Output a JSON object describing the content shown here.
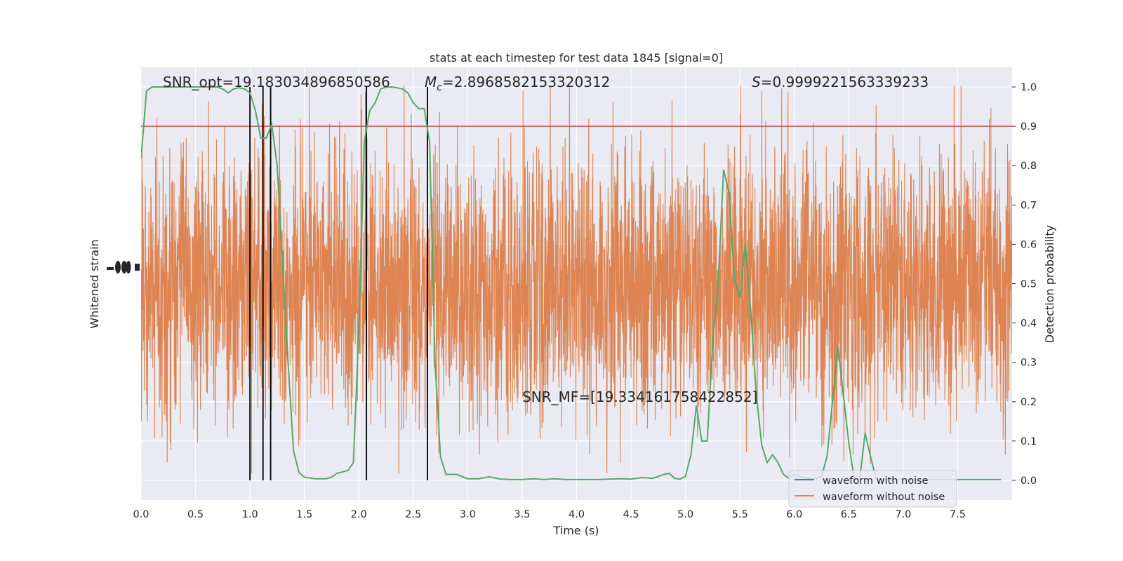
{
  "chart_data": {
    "type": "line",
    "title": "stats at each timestep for test data 1845 [signal=0]",
    "xlabel": "Time (s)",
    "ylabel_left": "Whitened strain",
    "ylabel_right": "Detection probability",
    "xlim": [
      0,
      8
    ],
    "ylim_right": [
      -0.05,
      1.05
    ],
    "x_ticks": [
      "0.0",
      "0.5",
      "1.0",
      "1.5",
      "2.0",
      "2.5",
      "3.0",
      "3.5",
      "4.0",
      "4.5",
      "5.0",
      "5.5",
      "6.0",
      "6.5",
      "7.0",
      "7.5"
    ],
    "y_ticks_right": [
      "0.0",
      "0.1",
      "0.2",
      "0.3",
      "0.4",
      "0.5",
      "0.6",
      "0.7",
      "0.8",
      "0.9",
      "1.0"
    ],
    "grid": true,
    "legend_position": "bottom-right",
    "annotations": {
      "snr_opt": "SNR_opt=19.183034896850586",
      "mc_symbol": "M",
      "mc_subscript": "c",
      "mc_value": "=2.8968582153320312",
      "s_symbol": "S",
      "s_value": "=0.9999221563339233",
      "snr_mf": "SNR_MF=[19.334161758422852]"
    },
    "threshold": 0.9,
    "vertical_lines": [
      1.0,
      1.12,
      1.19,
      2.07,
      2.63
    ],
    "series": [
      {
        "name": "waveform with noise",
        "color": "#4c72b0"
      },
      {
        "name": "waveform without noise",
        "color": "#dd8452"
      }
    ],
    "detection_probability": {
      "color": "#55a868",
      "x": [
        0.0,
        0.05,
        0.1,
        0.2,
        0.3,
        0.4,
        0.5,
        0.6,
        0.7,
        0.75,
        0.8,
        0.85,
        0.9,
        0.95,
        1.0,
        1.05,
        1.1,
        1.15,
        1.2,
        1.25,
        1.3,
        1.35,
        1.4,
        1.45,
        1.5,
        1.6,
        1.7,
        1.75,
        1.8,
        1.9,
        1.95,
        2.0,
        2.05,
        2.1,
        2.15,
        2.2,
        2.25,
        2.3,
        2.35,
        2.4,
        2.45,
        2.5,
        2.55,
        2.6,
        2.65,
        2.7,
        2.75,
        2.8,
        2.9,
        3.0,
        3.1,
        3.2,
        3.3,
        3.4,
        3.5,
        3.6,
        3.7,
        3.8,
        3.9,
        4.0,
        4.1,
        4.2,
        4.3,
        4.4,
        4.5,
        4.6,
        4.7,
        4.8,
        4.85,
        4.9,
        4.95,
        5.0,
        5.05,
        5.1,
        5.15,
        5.2,
        5.25,
        5.3,
        5.35,
        5.4,
        5.45,
        5.5,
        5.55,
        5.6,
        5.65,
        5.7,
        5.75,
        5.8,
        5.85,
        5.9,
        5.95,
        6.0,
        6.05,
        6.1,
        6.15,
        6.2,
        6.25,
        6.3,
        6.4,
        6.5,
        6.55,
        6.6,
        6.65,
        6.7,
        6.75,
        6.8,
        6.85,
        6.9,
        6.95,
        7.0,
        7.05,
        7.1,
        7.2,
        7.3,
        7.4,
        7.5,
        7.6,
        7.7,
        7.8,
        7.9
      ],
      "y": [
        0.82,
        0.99,
        1.0,
        1.0,
        1.0,
        1.0,
        1.0,
        1.0,
        1.0,
        0.995,
        0.985,
        0.995,
        0.998,
        0.995,
        0.985,
        0.94,
        0.87,
        0.87,
        0.905,
        0.8,
        0.55,
        0.3,
        0.075,
        0.02,
        0.008,
        0.004,
        0.004,
        0.008,
        0.018,
        0.025,
        0.045,
        0.38,
        0.86,
        0.94,
        0.96,
        0.995,
        1.0,
        1.0,
        0.998,
        0.995,
        0.985,
        0.96,
        0.945,
        0.945,
        0.86,
        0.3,
        0.06,
        0.015,
        0.015,
        0.004,
        0.004,
        0.009,
        0.003,
        0.002,
        0.002,
        0.004,
        0.002,
        0.004,
        0.002,
        0.002,
        0.002,
        0.002,
        0.003,
        0.004,
        0.003,
        0.007,
        0.005,
        0.015,
        0.018,
        0.005,
        0.003,
        0.01,
        0.065,
        0.19,
        0.1,
        0.1,
        0.35,
        0.5,
        0.79,
        0.73,
        0.51,
        0.465,
        0.6,
        0.43,
        0.22,
        0.09,
        0.045,
        0.065,
        0.045,
        0.015,
        0.005,
        0.015,
        0.01,
        0.005,
        0.005,
        0.005,
        0.01,
        0.06,
        0.34,
        0.095,
        0.002,
        0.002,
        0.12,
        0.06,
        0.005,
        0.002,
        0.002,
        0.002,
        0.002,
        0.002,
        0.002,
        0.002,
        0.002,
        0.002,
        0.002,
        0.002,
        0.002,
        0.002,
        0.002,
        0.002
      ]
    }
  }
}
